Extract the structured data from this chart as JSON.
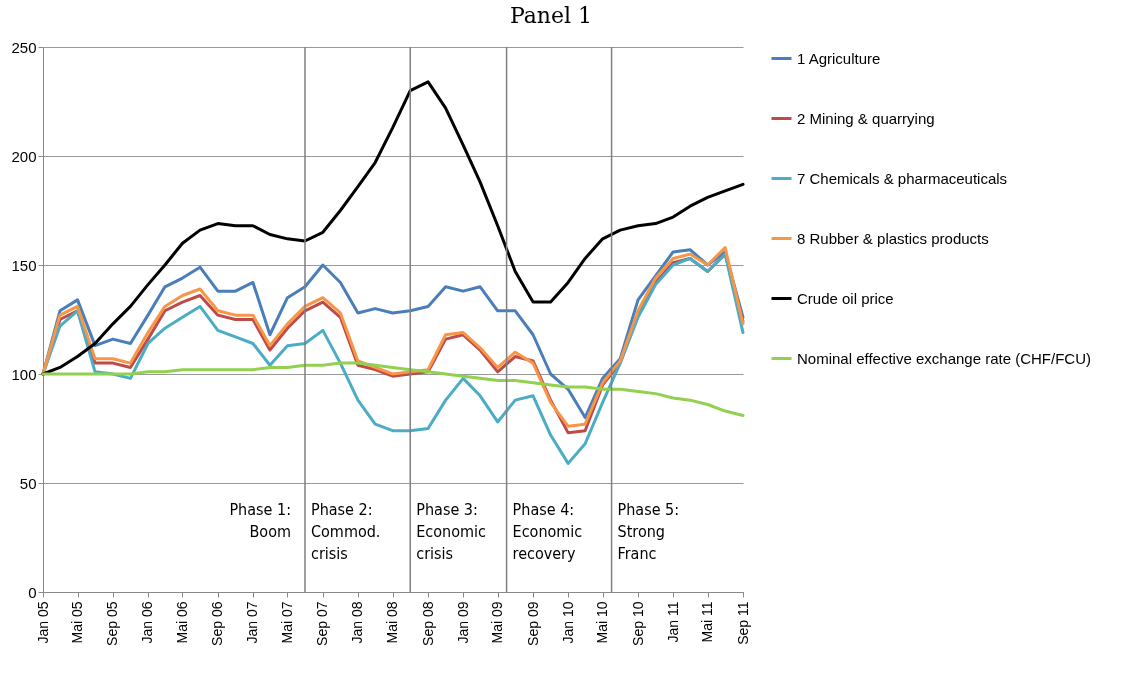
{
  "chart_data": {
    "type": "line",
    "title": "Panel 1",
    "x": [
      "2005-01",
      "2005-03",
      "2005-05",
      "2005-07",
      "2005-09",
      "2005-11",
      "2006-01",
      "2006-03",
      "2006-05",
      "2006-07",
      "2006-09",
      "2006-11",
      "2007-01",
      "2007-03",
      "2007-05",
      "2007-07",
      "2007-09",
      "2007-11",
      "2008-01",
      "2008-03",
      "2008-05",
      "2008-07",
      "2008-09",
      "2008-11",
      "2009-01",
      "2009-03",
      "2009-05",
      "2009-07",
      "2009-09",
      "2009-11",
      "2010-01",
      "2010-03",
      "2010-05",
      "2010-07",
      "2010-09",
      "2010-11",
      "2011-01",
      "2011-03",
      "2011-05",
      "2011-07",
      "2011-09"
    ],
    "series": [
      {
        "name": "1 Agriculture",
        "color": "#4a7ebb",
        "values": [
          100,
          129,
          134,
          113,
          116,
          114,
          127,
          140,
          144,
          149,
          138,
          138,
          142,
          118,
          135,
          140,
          150,
          142,
          128,
          130,
          128,
          129,
          131,
          140,
          138,
          140,
          129,
          129,
          118,
          100,
          93,
          80,
          98,
          107,
          134,
          145,
          156,
          157,
          150,
          156,
          126
        ]
      },
      {
        "name": "2 Mining & quarrying",
        "color": "#be4b48",
        "values": [
          100,
          125,
          129,
          105,
          105,
          103,
          116,
          129,
          133,
          136,
          127,
          125,
          125,
          111,
          121,
          129,
          133,
          126,
          104,
          102,
          99,
          100,
          101,
          116,
          118,
          111,
          101,
          108,
          106,
          88,
          73,
          74,
          95,
          105,
          128,
          142,
          151,
          153,
          147,
          155,
          124
        ]
      },
      {
        "name": "7 Chemicals & pharmaceuticals",
        "color": "#4bacc6",
        "values": [
          100,
          122,
          129,
          101,
          100,
          98,
          114,
          121,
          126,
          131,
          120,
          117,
          114,
          104,
          113,
          114,
          120,
          105,
          88,
          77,
          74,
          74,
          75,
          88,
          98,
          90,
          78,
          88,
          90,
          72,
          59,
          68,
          87,
          105,
          126,
          141,
          150,
          153,
          147,
          155,
          119
        ]
      },
      {
        "name": "8 Rubber & plastics products",
        "color": "#f79646",
        "values": [
          100,
          127,
          131,
          107,
          107,
          105,
          119,
          131,
          136,
          139,
          129,
          127,
          127,
          113,
          123,
          131,
          135,
          128,
          106,
          103,
          100,
          101,
          102,
          118,
          119,
          112,
          103,
          110,
          105,
          87,
          76,
          77,
          96,
          106,
          129,
          144,
          153,
          155,
          150,
          158,
          123
        ]
      },
      {
        "name": "Crude oil price",
        "color": "#000000",
        "values": [
          100,
          103,
          108,
          114,
          123,
          131,
          141,
          150,
          160,
          166,
          169,
          168,
          168,
          164,
          162,
          161,
          165,
          175,
          186,
          197,
          213,
          230,
          234,
          222,
          205,
          188,
          168,
          147,
          133,
          133,
          142,
          153,
          162,
          166,
          168,
          169,
          172,
          177,
          181,
          184,
          187
        ]
      },
      {
        "name": "Nominal effective exchange rate (CHF/FCU)",
        "color": "#92d050",
        "values": [
          100,
          100,
          100,
          100,
          100,
          100,
          101,
          101,
          102,
          102,
          102,
          102,
          102,
          103,
          103,
          104,
          104,
          105,
          105,
          104,
          103,
          102,
          101,
          100,
          99,
          98,
          97,
          97,
          96,
          95,
          94,
          94,
          93,
          93,
          92,
          91,
          89,
          88,
          86,
          83,
          81
        ]
      }
    ],
    "xlim": [
      "2005-01",
      "2011-09"
    ],
    "xticks": [
      {
        "value": "2005-01",
        "label": "Jan 05"
      },
      {
        "value": "2005-05",
        "label": "Mai 05"
      },
      {
        "value": "2005-09",
        "label": "Sep 05"
      },
      {
        "value": "2006-01",
        "label": "Jan 06"
      },
      {
        "value": "2006-05",
        "label": "Mai 06"
      },
      {
        "value": "2006-09",
        "label": "Sep 06"
      },
      {
        "value": "2007-01",
        "label": "Jan 07"
      },
      {
        "value": "2007-05",
        "label": "Mai 07"
      },
      {
        "value": "2007-09",
        "label": "Sep 07"
      },
      {
        "value": "2008-01",
        "label": "Jan 08"
      },
      {
        "value": "2008-05",
        "label": "Mai 08"
      },
      {
        "value": "2008-09",
        "label": "Sep 08"
      },
      {
        "value": "2009-01",
        "label": "Jan 09"
      },
      {
        "value": "2009-05",
        "label": "Mai 09"
      },
      {
        "value": "2009-09",
        "label": "Sep 09"
      },
      {
        "value": "2010-01",
        "label": "Jan 10"
      },
      {
        "value": "2010-05",
        "label": "Mai 10"
      },
      {
        "value": "2010-09",
        "label": "Sep 10"
      },
      {
        "value": "2011-01",
        "label": "Jan 11"
      },
      {
        "value": "2011-05",
        "label": "Mai 11"
      },
      {
        "value": "2011-09",
        "label": "Sep 11"
      }
    ],
    "ylim": [
      0,
      250
    ],
    "yticks": [
      0,
      50,
      100,
      150,
      200,
      250
    ],
    "grid": "y",
    "legend": "right",
    "ref_lines": [
      {
        "axis": "x",
        "value": "2007-07",
        "color": "#808080"
      },
      {
        "axis": "x",
        "value": "2008-07",
        "color": "#808080"
      },
      {
        "axis": "x",
        "value": "2009-06",
        "color": "#808080"
      },
      {
        "axis": "x",
        "value": "2010-06",
        "color": "#808080"
      }
    ],
    "annotations": [
      "Phase 1:\nBoom",
      "Phase 2:\nCommod.\ncrisis",
      "Phase 3:\nEconomic\ncrisis",
      "Phase 4:\nEconomic\nrecovery",
      "Phase 5:\nStrong\nFranc"
    ]
  }
}
